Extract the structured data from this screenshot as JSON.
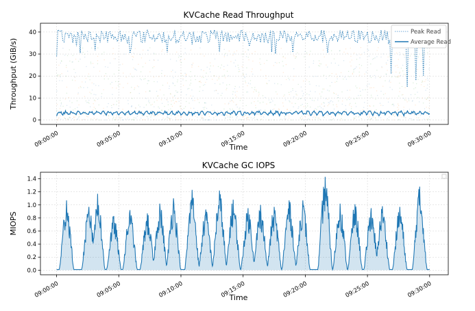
{
  "chart_data": [
    {
      "type": "line",
      "title": "KVCache Read Throughput",
      "xlabel": "Time",
      "ylabel": "Throughput (GiB/s)",
      "x_ticks": [
        "09:00:00",
        "09:05:00",
        "09:10:00",
        "09:15:00",
        "09:20:00",
        "09:25:00",
        "09:30:00"
      ],
      "y_ticks": [
        "0",
        "10",
        "20",
        "30",
        "40"
      ],
      "ylim": [
        -2,
        44
      ],
      "xlim_minutes": [
        -1.3,
        31.5
      ],
      "x_range_minutes": [
        0,
        30
      ],
      "grid": true,
      "legend_position": "top-right",
      "series": [
        {
          "name": "Peak Read",
          "style": "dotted",
          "color": "#1f77b4",
          "typical_range": [
            35,
            41
          ],
          "dips": [
            [
              26.9,
              21
            ],
            [
              28.2,
              15
            ],
            [
              28.9,
              18
            ],
            [
              29.5,
              20
            ]
          ]
        },
        {
          "name": "Average Read",
          "style": "solid",
          "color": "#1f77b4",
          "typical_range": [
            1,
            4.5
          ]
        }
      ],
      "background_scatter": {
        "colors": [
          "#1f77b4",
          "#ff7f0e",
          "#2ca02c"
        ],
        "range": [
          0,
          33
        ]
      }
    },
    {
      "type": "area",
      "title": "KVCache GC IOPS",
      "xlabel": "Time",
      "ylabel": "MIOPS",
      "x_ticks": [
        "09:00:00",
        "09:05:00",
        "09:10:00",
        "09:15:00",
        "09:20:00",
        "09:25:00",
        "09:30:00"
      ],
      "y_ticks": [
        "0.0",
        "0.2",
        "0.4",
        "0.6",
        "0.8",
        "1.0",
        "1.2",
        "1.4"
      ],
      "ylim": [
        -0.07,
        1.5
      ],
      "xlim_minutes": [
        -1.3,
        31.5
      ],
      "x_range_minutes": [
        0,
        30
      ],
      "grid": true,
      "legend_position": "top-right",
      "color": "#1f77b4",
      "peaks": [
        {
          "t": 0.8,
          "v": 1.07
        },
        {
          "t": 2.6,
          "v": 0.97
        },
        {
          "t": 3.3,
          "v": 1.17
        },
        {
          "t": 4.6,
          "v": 0.83
        },
        {
          "t": 5.9,
          "v": 0.92
        },
        {
          "t": 7.3,
          "v": 0.87
        },
        {
          "t": 8.3,
          "v": 1.02
        },
        {
          "t": 9.4,
          "v": 1.1
        },
        {
          "t": 10.9,
          "v": 1.23
        },
        {
          "t": 12.0,
          "v": 0.93
        },
        {
          "t": 13.1,
          "v": 1.22
        },
        {
          "t": 14.2,
          "v": 1.08
        },
        {
          "t": 15.4,
          "v": 0.95
        },
        {
          "t": 16.4,
          "v": 1.0
        },
        {
          "t": 17.5,
          "v": 0.97
        },
        {
          "t": 18.7,
          "v": 1.07
        },
        {
          "t": 19.8,
          "v": 1.07
        },
        {
          "t": 21.6,
          "v": 1.43
        },
        {
          "t": 22.8,
          "v": 1.02
        },
        {
          "t": 24.0,
          "v": 1.01
        },
        {
          "t": 25.3,
          "v": 0.95
        },
        {
          "t": 26.2,
          "v": 0.98
        },
        {
          "t": 27.6,
          "v": 0.97
        },
        {
          "t": 29.2,
          "v": 1.28
        }
      ]
    }
  ]
}
